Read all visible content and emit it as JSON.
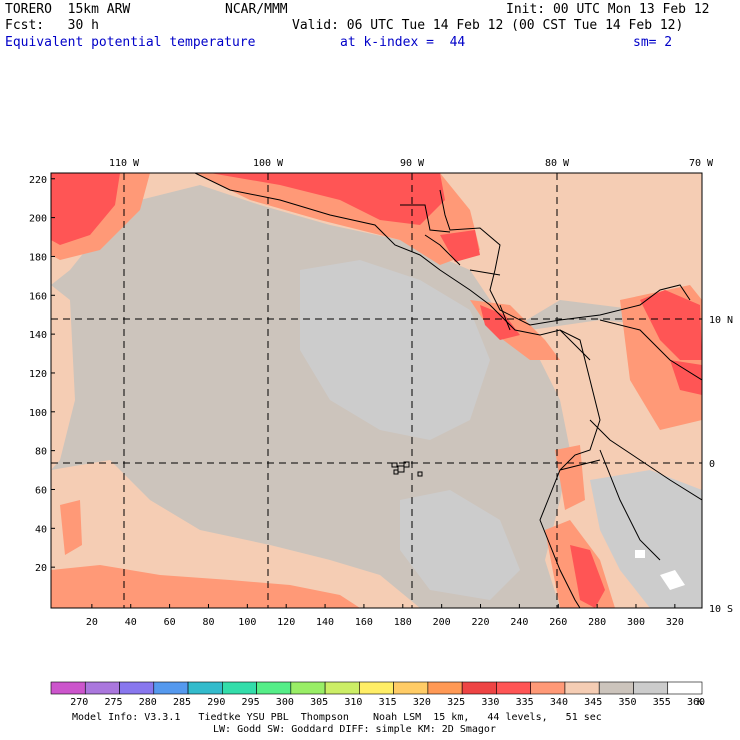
{
  "header": {
    "model": "TORERO  15km ARW",
    "center": "NCAR/MMM",
    "init": "Init: 00 UTC Mon 13 Feb 12",
    "fcst": "Fcst:   30 h",
    "valid": "Valid: 06 UTC Tue 14 Feb 12 (00 CST Tue 14 Feb 12)",
    "field": "Equivalent potential temperature",
    "level": "at k-index =  44",
    "smooth": "sm= 2"
  },
  "map": {
    "lon_labels": [
      "110 W",
      "100 W",
      "90 W",
      "80 W",
      "70 W"
    ],
    "lat_labels": [
      "10 N",
      "0",
      "10 S"
    ],
    "y_ticks": [
      "220",
      "200",
      "180",
      "160",
      "140",
      "120",
      "100",
      "80",
      "60",
      "40",
      "20"
    ],
    "x_ticks": [
      "20",
      "40",
      "60",
      "80",
      "100",
      "120",
      "140",
      "160",
      "180",
      "200",
      "220",
      "240",
      "260",
      "280",
      "300",
      "320"
    ]
  },
  "colorbar": {
    "labels": [
      "270",
      "275",
      "280",
      "285",
      "290",
      "295",
      "300",
      "305",
      "310",
      "315",
      "320",
      "325",
      "330",
      "335",
      "340",
      "345",
      "350",
      "355",
      "360"
    ],
    "unit": "K",
    "colors": [
      "#cc55cc",
      "#aa77dd",
      "#8877ee",
      "#5599ee",
      "#33bbcc",
      "#33ddaa",
      "#55ee88",
      "#99ee66",
      "#ccee66",
      "#ffee66",
      "#ffcc66",
      "#ff9955",
      "#ee4444",
      "#ff5555",
      "#ff9977",
      "#f5cdb4",
      "#ccc4bc",
      "#cccccc",
      "#ffffff"
    ]
  },
  "footer": {
    "line1": "Model Info: V3.3.1   Tiedtke YSU PBL  Thompson    Noah LSM  15 km,   44 levels,   51 sec",
    "line2": "LW: Godd SW: Goddard DIFF: simple KM: 2D Smagor"
  }
}
